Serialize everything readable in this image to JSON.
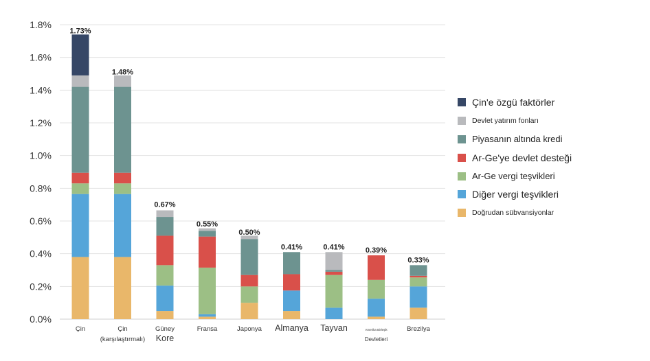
{
  "chart_data": {
    "type": "bar",
    "stacked": true,
    "ylim": [
      0,
      1.8
    ],
    "y_ticks": [
      "0.0%",
      "0.2%",
      "0.4%",
      "0.6%",
      "0.8%",
      "1.0%",
      "1.2%",
      "1.4%",
      "1.6%",
      "1.8%"
    ],
    "grid": true,
    "legend_position": "right",
    "categories": [
      [
        "Çin"
      ],
      [
        "Çin",
        "(karşılaştırmalı)"
      ],
      [
        "Güney",
        "Kore"
      ],
      [
        "Fransa"
      ],
      [
        "Japonya"
      ],
      [
        "Almanya"
      ],
      [
        "Tayvan"
      ],
      [
        "Amerika Birleşik",
        "Devletleri"
      ],
      [
        "Brezilya"
      ]
    ],
    "totals": [
      "1.73%",
      "1.48%",
      "0.67%",
      "0.55%",
      "0.50%",
      "0.41%",
      "0.41%",
      "0.39%",
      "0.33%"
    ],
    "total_values": [
      1.73,
      1.48,
      0.67,
      0.55,
      0.5,
      0.41,
      0.41,
      0.39,
      0.33
    ],
    "series": [
      {
        "name": "Doğrudan sübvansiyonlar",
        "color": "#e9b76a",
        "values": [
          0.38,
          0.38,
          0.05,
          0.015,
          0.1,
          0.05,
          0.0,
          0.015,
          0.07
        ]
      },
      {
        "name": "Diğer vergi teşvikleri",
        "color": "#55a5d9",
        "values": [
          0.385,
          0.385,
          0.155,
          0.015,
          0.0,
          0.125,
          0.07,
          0.11,
          0.13
        ]
      },
      {
        "name": "Ar-Ge vergi teşvikleri",
        "color": "#9cbf85",
        "values": [
          0.065,
          0.065,
          0.125,
          0.285,
          0.1,
          0.0,
          0.2,
          0.115,
          0.055
        ]
      },
      {
        "name": "Ar-Ge'ye devlet desteği",
        "color": "#d9504a",
        "values": [
          0.065,
          0.065,
          0.18,
          0.19,
          0.07,
          0.1,
          0.02,
          0.15,
          0.01
        ]
      },
      {
        "name": "Piyasanın altında kredi",
        "color": "#6d9390",
        "values": [
          0.525,
          0.525,
          0.115,
          0.035,
          0.22,
          0.135,
          0.01,
          0.0,
          0.065
        ]
      },
      {
        "name": "Devlet yatırım fonları",
        "color": "#b9babd",
        "values": [
          0.07,
          0.07,
          0.04,
          0.015,
          0.02,
          0.0,
          0.11,
          0.0,
          0.0
        ]
      },
      {
        "name": "Çin'e özgü faktörler",
        "color": "#364766",
        "values": [
          0.25,
          0.0,
          0.0,
          0.0,
          0.0,
          0.0,
          0.0,
          0.0,
          0.0
        ]
      }
    ]
  },
  "legend": {
    "items": [
      {
        "label": "Çin'e özgü faktörler",
        "color": "#364766",
        "size": "big"
      },
      {
        "label": "Devlet yatırım fonları",
        "color": "#b9babd",
        "size": "small"
      },
      {
        "label": "Piyasanın altında kredi",
        "color": "#6d9390",
        "size": "mid"
      },
      {
        "label": "Ar-Ge'ye devlet desteği",
        "color": "#d9504a",
        "size": "big"
      },
      {
        "label": "Ar-Ge vergi teşvikleri",
        "color": "#9cbf85",
        "size": "mid"
      },
      {
        "label": "Diğer vergi teşvikleri",
        "color": "#55a5d9",
        "size": "big"
      },
      {
        "label": "Doğrudan sübvansiyonlar",
        "color": "#e9b76a",
        "size": "small"
      }
    ]
  }
}
